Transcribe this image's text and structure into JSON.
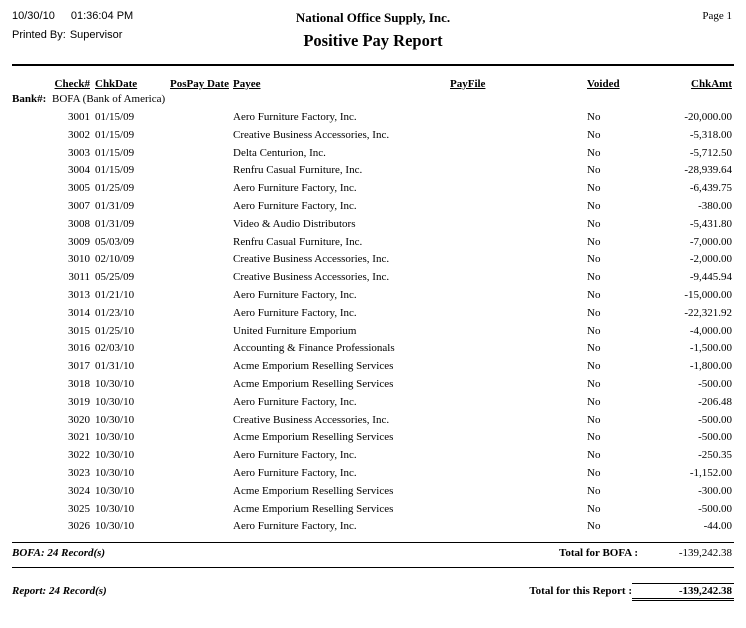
{
  "header": {
    "date": "10/30/10",
    "time": "01:36:04 PM",
    "printed_by_label": "Printed By:",
    "printed_by": "Supervisor",
    "company": "National Office Supply, Inc.",
    "title": "Positive Pay Report",
    "page": "Page 1"
  },
  "columns": {
    "check": "Check#",
    "chkdate": "ChkDate",
    "pospay_date": "PosPay Date",
    "payee": "Payee",
    "payfile": "PayFile",
    "voided": "Voided",
    "chkamt": "ChkAmt"
  },
  "bank": {
    "label": "Bank#:",
    "name": "BOFA (Bank of America)"
  },
  "rows": [
    {
      "check": "3001",
      "date": "01/15/09",
      "payee": "Aero Furniture Factory, Inc.",
      "voided": "No",
      "amount": "-20,000.00"
    },
    {
      "check": "3002",
      "date": "01/15/09",
      "payee": "Creative Business Accessories, Inc.",
      "voided": "No",
      "amount": "-5,318.00"
    },
    {
      "check": "3003",
      "date": "01/15/09",
      "payee": "Delta Centurion, Inc.",
      "voided": "No",
      "amount": "-5,712.50"
    },
    {
      "check": "3004",
      "date": "01/15/09",
      "payee": "Renfru Casual Furniture, Inc.",
      "voided": "No",
      "amount": "-28,939.64"
    },
    {
      "check": "3005",
      "date": "01/25/09",
      "payee": "Aero Furniture Factory, Inc.",
      "voided": "No",
      "amount": "-6,439.75"
    },
    {
      "check": "3007",
      "date": "01/31/09",
      "payee": "Aero Furniture Factory, Inc.",
      "voided": "No",
      "amount": "-380.00"
    },
    {
      "check": "3008",
      "date": "01/31/09",
      "payee": "Video & Audio Distributors",
      "voided": "No",
      "amount": "-5,431.80"
    },
    {
      "check": "3009",
      "date": "05/03/09",
      "payee": "Renfru Casual Furniture, Inc.",
      "voided": "No",
      "amount": "-7,000.00"
    },
    {
      "check": "3010",
      "date": "02/10/09",
      "payee": "Creative Business Accessories, Inc.",
      "voided": "No",
      "amount": "-2,000.00"
    },
    {
      "check": "3011",
      "date": "05/25/09",
      "payee": "Creative Business Accessories, Inc.",
      "voided": "No",
      "amount": "-9,445.94"
    },
    {
      "check": "3013",
      "date": "01/21/10",
      "payee": "Aero Furniture Factory, Inc.",
      "voided": "No",
      "amount": "-15,000.00"
    },
    {
      "check": "3014",
      "date": "01/23/10",
      "payee": "Aero Furniture Factory, Inc.",
      "voided": "No",
      "amount": "-22,321.92"
    },
    {
      "check": "3015",
      "date": "01/25/10",
      "payee": "United Furniture Emporium",
      "voided": "No",
      "amount": "-4,000.00"
    },
    {
      "check": "3016",
      "date": "02/03/10",
      "payee": "Accounting & Finance Professionals",
      "voided": "No",
      "amount": "-1,500.00"
    },
    {
      "check": "3017",
      "date": "01/31/10",
      "payee": "Acme Emporium Reselling Services",
      "voided": "No",
      "amount": "-1,800.00"
    },
    {
      "check": "3018",
      "date": "10/30/10",
      "payee": "Acme Emporium Reselling Services",
      "voided": "No",
      "amount": "-500.00"
    },
    {
      "check": "3019",
      "date": "10/30/10",
      "payee": "Aero Furniture Factory, Inc.",
      "voided": "No",
      "amount": "-206.48"
    },
    {
      "check": "3020",
      "date": "10/30/10",
      "payee": "Creative Business Accessories, Inc.",
      "voided": "No",
      "amount": "-500.00"
    },
    {
      "check": "3021",
      "date": "10/30/10",
      "payee": "Acme Emporium Reselling Services",
      "voided": "No",
      "amount": "-500.00"
    },
    {
      "check": "3022",
      "date": "10/30/10",
      "payee": "Aero Furniture Factory, Inc.",
      "voided": "No",
      "amount": "-250.35"
    },
    {
      "check": "3023",
      "date": "10/30/10",
      "payee": "Aero Furniture Factory, Inc.",
      "voided": "No",
      "amount": "-1,152.00"
    },
    {
      "check": "3024",
      "date": "10/30/10",
      "payee": "Acme Emporium Reselling Services",
      "voided": "No",
      "amount": "-300.00"
    },
    {
      "check": "3025",
      "date": "10/30/10",
      "payee": "Acme Emporium Reselling Services",
      "voided": "No",
      "amount": "-500.00"
    },
    {
      "check": "3026",
      "date": "10/30/10",
      "payee": "Aero Furniture Factory, Inc.",
      "voided": "No",
      "amount": "-44.00"
    }
  ],
  "totals": {
    "bofa_records": "BOFA: 24 Record(s)",
    "bofa_label": "Total for BOFA :",
    "bofa_amount": "-139,242.38",
    "report_records": "Report: 24 Record(s)",
    "report_label": "Total for this Report :",
    "report_amount": "-139,242.38"
  }
}
